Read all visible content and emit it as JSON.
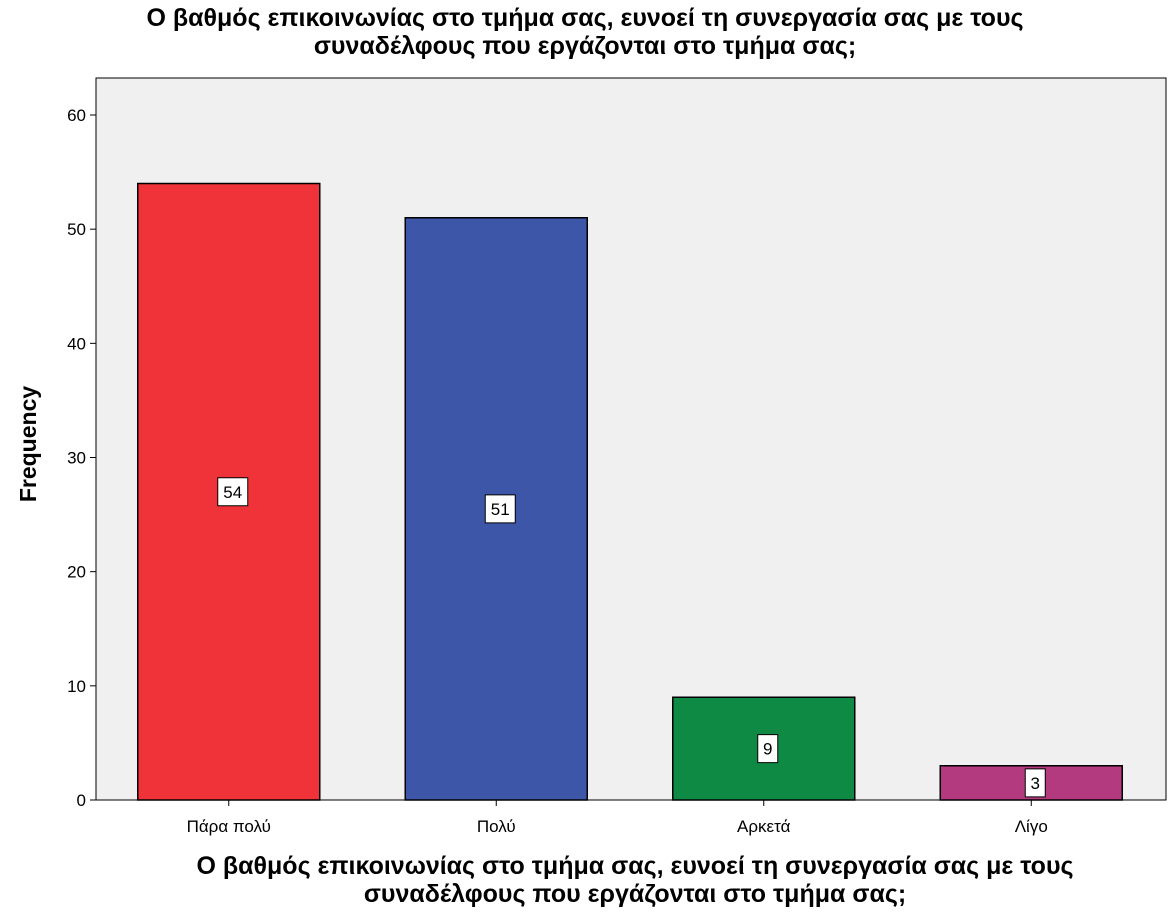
{
  "chart_data": {
    "type": "bar",
    "title": "Ο βαθμός επικοινωνίας στο τμήμα σας, ευνοεί τη συνεργασία σας με τους\nσυναδέλφους που εργάζονται στο τμήμα σας;",
    "xlabel": "Ο βαθμός επικοινωνίας στο τμήμα σας, ευνοεί τη συνεργασία σας με τους\nσυναδέλφους που εργάζονται στο τμήμα σας;",
    "ylabel": "Frequency",
    "categories": [
      "Πάρα πολύ",
      "Πολύ",
      "Αρκετά",
      "Λίγο"
    ],
    "values": [
      54,
      51,
      9,
      3
    ],
    "data_labels": [
      "54",
      "51",
      "9",
      "3"
    ],
    "colors": [
      "#ef3338",
      "#3d56a8",
      "#0e8a44",
      "#b33a7e"
    ],
    "ylim": [
      0,
      60
    ],
    "yticks": [
      0,
      10,
      20,
      30,
      40,
      50,
      60
    ],
    "plot_background": "#f0f0f0",
    "grid": false,
    "legend": "none"
  }
}
